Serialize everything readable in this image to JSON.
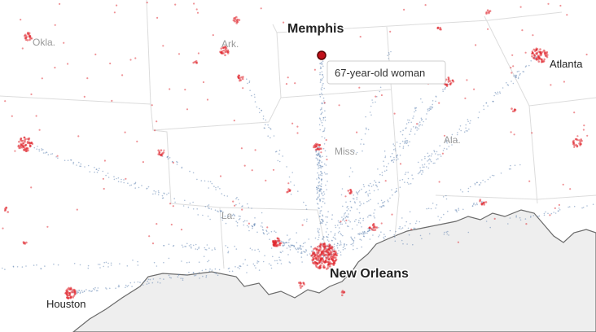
{
  "cities": [
    "Memphis",
    "Atlanta",
    "New Orleans",
    "Houston"
  ],
  "states": [
    "Okla.",
    "Ark.",
    "Miss.",
    "Ala.",
    "La."
  ],
  "tooltip": "67-year-old woman"
}
